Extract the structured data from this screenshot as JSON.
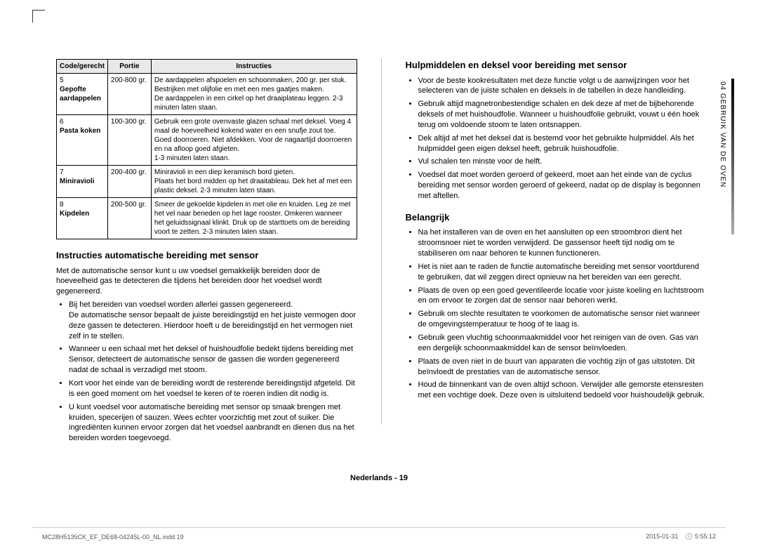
{
  "colors": {
    "page_bg": "#ffffff",
    "text": "#000000",
    "header_bg": "#e9e9e9",
    "border": "#000000",
    "divider": "#888888",
    "footer_text": "#555555",
    "crop_mark": "#333333"
  },
  "table": {
    "headers": {
      "code": "Code/gerecht",
      "portion": "Portie",
      "instructions": "Instructies"
    },
    "rows": [
      {
        "no": "5",
        "name": "Gepofte aardappelen",
        "portion": "200-800 gr.",
        "instr": "De aardappelen afspoelen en schoonmaken, 200 gr. per stuk.\nBestrijken met olijfolie en met een mes gaatjes maken.\nDe aardappelen in een cirkel op het draaiplateau leggen. 2-3 minuten laten staan."
      },
      {
        "no": "6",
        "name": "Pasta koken",
        "portion": "100-300 gr.",
        "instr": "Gebruik een grote ovenvaste glazen schaal met deksel. Voeg 4 maal de hoeveelheid kokend water en een snufje zout toe. Goed doorroeren. Niet afdekken. Voor de nagaartijd doorroeren en na afloop goed afgieten.\n1-3 minuten laten staan."
      },
      {
        "no": "7",
        "name": "Miniravioli",
        "portion": "200-400 gr.",
        "instr": "Miniravioli in een diep keramisch bord gieten.\nPlaats het bord midden op het draaitableau. Dek het af met een plastic deksel. 2-3 minuten laten staan."
      },
      {
        "no": "8",
        "name": "Kipdelen",
        "portion": "200-500 gr.",
        "instr": "Smeer de gekoelde kipdelen in met olie en kruiden. Leg ze met het vel naar beneden op het lage rooster. Omkeren wanneer het geluidssignaal klinkt. Druk op de starttoets om de bereiding voort te zetten. 2-3 minuten laten staan."
      }
    ]
  },
  "left": {
    "heading": "Instructies automatische bereiding met sensor",
    "intro": "Met de automatische sensor kunt u uw voedsel gemakkelijk bereiden door de hoeveelheid gas te detecteren die tijdens het bereiden door het voedsel wordt gegenereerd.",
    "bullets": [
      "Bij het bereiden van voedsel worden allerlei gassen gegenereerd.\nDe automatische sensor bepaalt de juiste bereidingstijd en het juiste vermogen door deze gassen te detecteren. Hierdoor hoeft u de bereidingstijd en het vermogen niet zelf in te stellen.",
      "Wanneer u een schaal met het deksel of huishoudfolie bedekt tijdens bereiding met Sensor, detecteert de automatische sensor de gassen die worden gegenereerd nadat de schaal is verzadigd met stoom.",
      "Kort voor het einde van de bereiding wordt de resterende bereidingstijd afgeteld. Dit is een goed moment om het voedsel te keren of te roeren indien dit nodig is.",
      "U kunt voedsel voor automatische bereiding met sensor op smaak brengen met kruiden, specerijen of sauzen. Wees echter voorzichtig met zout of suiker. Die ingrediënten kunnen ervoor zorgen dat het voedsel aanbrandt en dienen dus na het bereiden worden toegevoegd."
    ]
  },
  "right": {
    "heading1": "Hulpmiddelen en deksel voor bereiding met sensor",
    "bullets1": [
      "Voor de beste kookresultaten met deze functie volgt u de aanwijzingen voor het selecteren van de juiste schalen en deksels in de tabellen in deze handleiding.",
      "Gebruik altijd magnetronbestendige schalen en dek deze af met de bijbehorende deksels of met huishoudfolie. Wanneer u huishoudfolie gebruikt, vouwt u één hoek terug om voldoende stoom te laten ontsnappen.",
      "Dek altijd af met het deksel dat is bestemd voor het gebruikte hulpmiddel. Als het hulpmiddel geen eigen deksel heeft, gebruik huishoudfolie.",
      "Vul schalen ten minste voor de helft.",
      "Voedsel dat moet worden geroerd of gekeerd, moet aan het einde van de cyclus bereiding met sensor worden geroerd of gekeerd, nadat op de display is begonnen met aftellen."
    ],
    "heading2": "Belangrijk",
    "bullets2": [
      "Na het installeren van de oven en het aansluiten op een stroombron dient het stroomsnoer niet te worden verwijderd. De gassensor heeft tijd nodig om te stabiliseren om naar behoren te kunnen functioneren.",
      "Het is niet aan te raden de functie automatische bereiding met sensor voortdurend te gebruiken, dat wil zeggen direct opnieuw na het bereiden van een gerecht.",
      "Plaats de oven op een goed geventileerde locatie voor juiste koeling en luchtstroom en om ervoor te zorgen dat de sensor naar behoren werkt.",
      "Gebruik om slechte resultaten te voorkomen de automatische sensor niet wanneer de omgevingstemperatuur te hoog of te laag is.",
      "Gebruik geen vluchtig schoonmaakmiddel voor het reinigen van de oven. Gas van een dergelijk schoonmaakmiddel kan de sensor beïnvloeden.",
      "Plaats de oven niet in de buurt van apparaten die vochtig zijn of gas uitstoten. Dit beïnvloedt de prestaties van de automatische sensor.",
      "Houd de binnenkant van de oven altijd schoon. Verwijder alle gemorste etensresten met een vochtige doek. Deze oven is uitsluitend bedoeld voor huishoudelijk gebruik."
    ]
  },
  "side_tab": "04  GEBRUIK VAN DE OVEN",
  "footer": {
    "center": "Nederlands - 19",
    "left": "MC28H5135CK_EF_DE68-04245L-00_NL.indd   19",
    "right_date": "2015-01-31",
    "right_time": "5:55:12"
  }
}
